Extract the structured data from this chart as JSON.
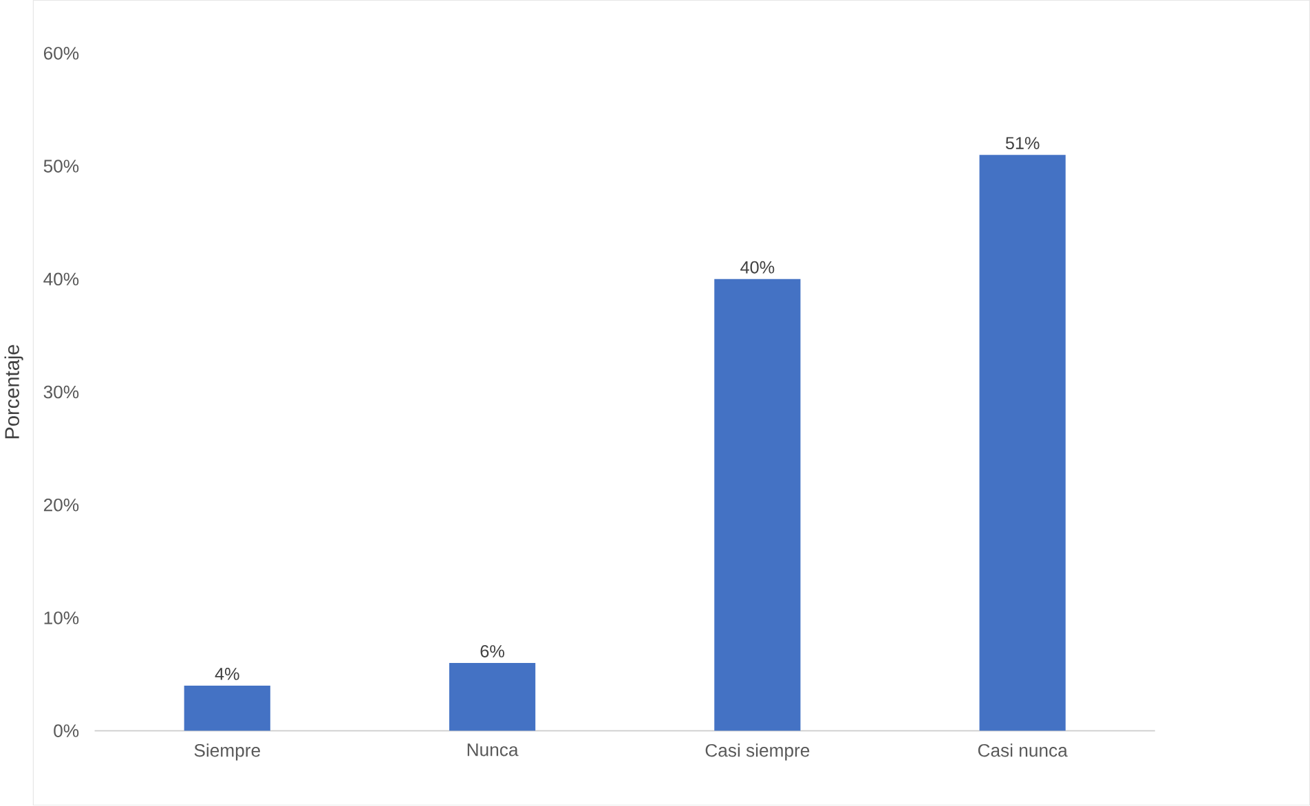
{
  "chart_data": {
    "type": "bar",
    "ylabel": "Porcentaje",
    "categories": [
      "Siempre",
      "Nunca",
      "Casi siempre",
      "Casi nunca"
    ],
    "values": [
      4,
      6,
      40,
      51
    ],
    "value_labels": [
      "4%",
      "6%",
      "40%",
      "51%"
    ],
    "color": "#4472c4",
    "ylim": [
      0,
      60
    ],
    "yticks": [
      {
        "value": 0,
        "label": "0%"
      },
      {
        "value": 10,
        "label": "10%"
      },
      {
        "value": 20,
        "label": "20%"
      },
      {
        "value": 30,
        "label": "30%"
      },
      {
        "value": 40,
        "label": "40%"
      },
      {
        "value": 50,
        "label": "50%"
      },
      {
        "value": 60,
        "label": "60%"
      }
    ]
  }
}
